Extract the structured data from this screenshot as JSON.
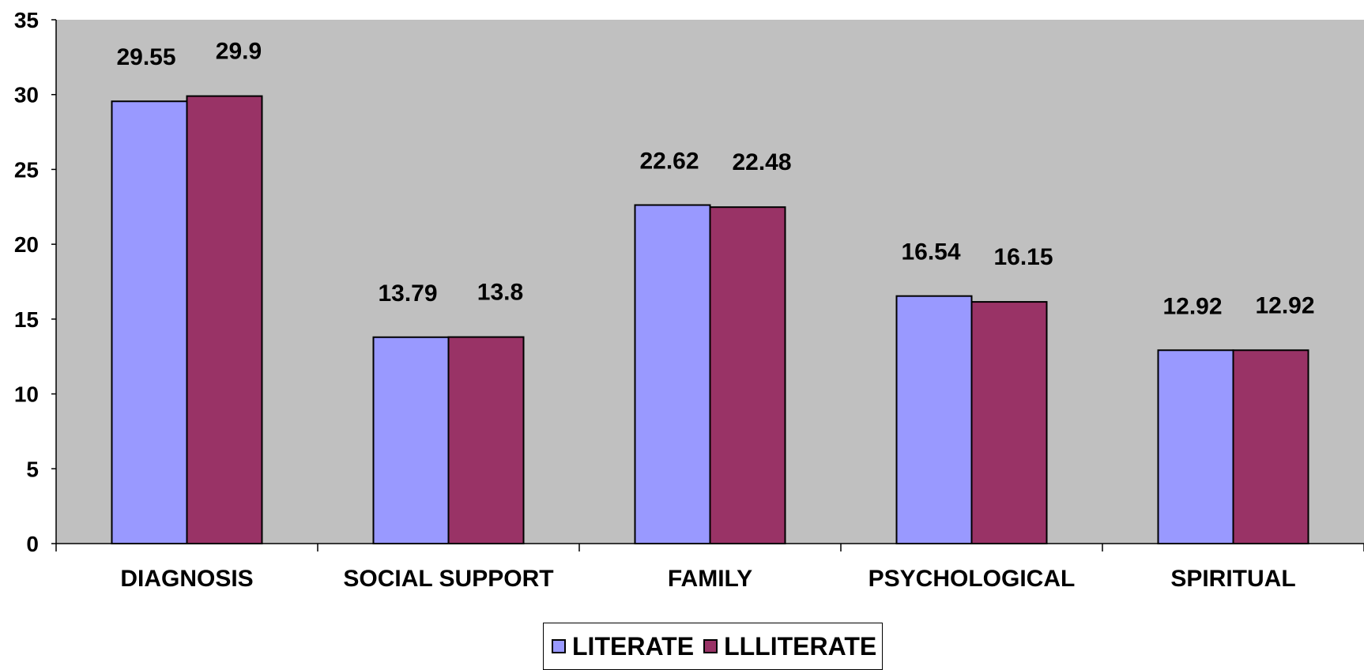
{
  "chart_data": {
    "type": "bar",
    "categories": [
      "DIAGNOSIS",
      "SOCIAL SUPPORT",
      "FAMILY",
      "PSYCHOLOGICAL",
      "SPIRITUAL"
    ],
    "series": [
      {
        "name": "LITERATE",
        "values": [
          29.55,
          13.79,
          22.62,
          16.54,
          12.92
        ],
        "labels": [
          "29.55",
          "13.79",
          "22.62",
          "16.54",
          "12.92"
        ],
        "color": "#9999ff"
      },
      {
        "name": "LLLITERATE",
        "values": [
          29.9,
          13.8,
          22.48,
          16.15,
          12.92
        ],
        "labels": [
          "29.9",
          "13.8",
          "22.48",
          "16.15",
          "12.92"
        ],
        "color": "#993366"
      }
    ],
    "ylim": [
      0,
      35
    ],
    "yticks": [
      "0",
      "5",
      "10",
      "15",
      "20",
      "25",
      "30",
      "35"
    ],
    "plot_background": "#c0c0c0",
    "grid": false,
    "legend_position": "bottom"
  }
}
